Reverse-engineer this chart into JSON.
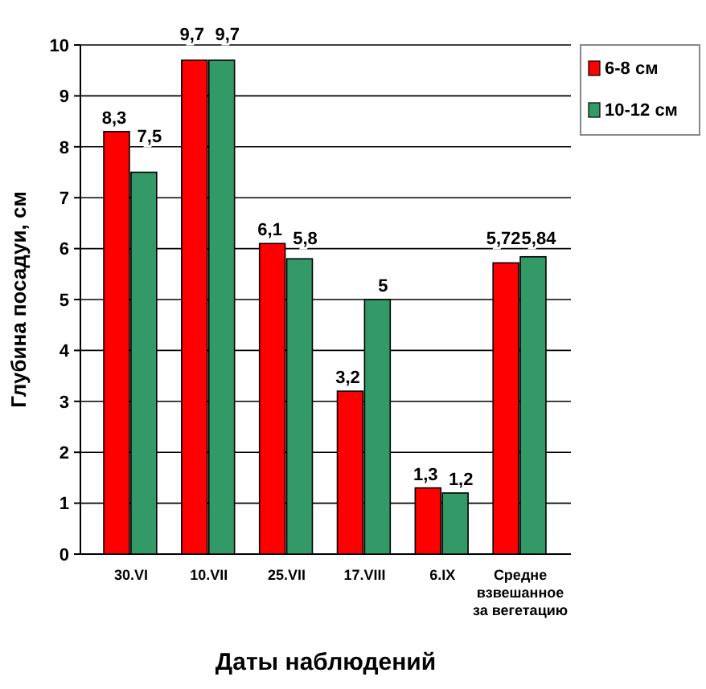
{
  "chart_data": {
    "type": "bar",
    "xlabel": "Даты наблюдений",
    "ylabel": "Глубина посадуи, см",
    "categories": [
      "30.VI",
      "10.VII",
      "25.VII",
      "17.VIII",
      "6.IX",
      "Средне взвешанное за вегетацию"
    ],
    "series": [
      {
        "name": "6-8 см",
        "color": "#ff0000",
        "values": [
          8.3,
          9.7,
          6.1,
          3.2,
          1.3,
          5.72
        ],
        "value_labels": [
          "8,3",
          "9,7",
          "6,1",
          "3,2",
          "1,3",
          "5,72"
        ]
      },
      {
        "name": "10-12 см",
        "color": "#339966",
        "values": [
          7.5,
          9.7,
          5.8,
          5,
          1.2,
          5.84
        ],
        "value_labels": [
          "7,5",
          "9,7",
          "5,8",
          "5",
          "1,2",
          "5,84"
        ]
      }
    ],
    "ylim": [
      0,
      10
    ],
    "yticks": [
      0,
      1,
      2,
      3,
      4,
      5,
      6,
      7,
      8,
      9,
      10
    ],
    "grid": "y",
    "legend": "top right"
  }
}
